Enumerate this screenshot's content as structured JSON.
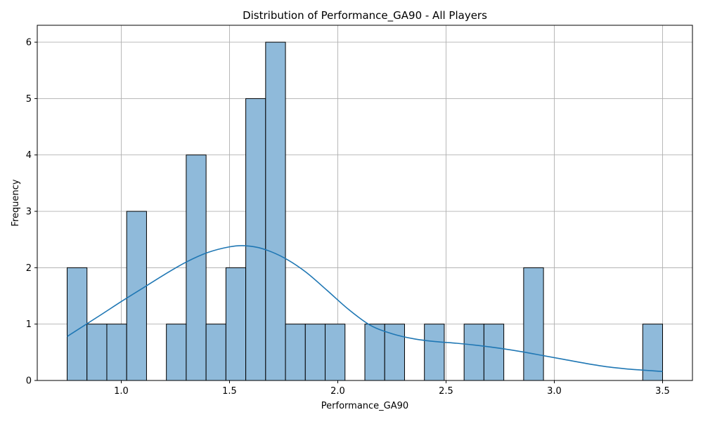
{
  "chart_data": {
    "type": "bar",
    "title": "Distribution of Performance_GA90 - All Players",
    "xlabel": "Performance_GA90",
    "ylabel": "Frequency",
    "xlim": [
      0.612,
      3.638
    ],
    "ylim": [
      0,
      6.3
    ],
    "grid": true,
    "bins": {
      "start": 0.75,
      "end": 3.5,
      "count": 30
    },
    "counts": [
      2,
      1,
      1,
      3,
      0,
      1,
      4,
      1,
      2,
      5,
      6,
      1,
      1,
      1,
      0,
      1,
      1,
      0,
      1,
      0,
      1,
      1,
      0,
      2,
      0,
      0,
      0,
      0,
      0,
      1
    ],
    "xticks": [
      "1.0",
      "1.5",
      "2.0",
      "2.5",
      "3.0",
      "3.5"
    ],
    "yticks": [
      "0",
      "1",
      "2",
      "3",
      "4",
      "5",
      "6"
    ],
    "kde": {
      "x": [
        0.75,
        0.9,
        1.0,
        1.1,
        1.2,
        1.3,
        1.4,
        1.5,
        1.57,
        1.65,
        1.75,
        1.85,
        1.95,
        2.05,
        2.15,
        2.25,
        2.35,
        2.45,
        2.55,
        2.65,
        2.75,
        2.85,
        2.95,
        3.05,
        3.15,
        3.25,
        3.35,
        3.5
      ],
      "y": [
        0.78,
        1.15,
        1.4,
        1.64,
        1.88,
        2.1,
        2.27,
        2.37,
        2.39,
        2.34,
        2.18,
        1.93,
        1.6,
        1.26,
        0.98,
        0.83,
        0.74,
        0.69,
        0.66,
        0.62,
        0.57,
        0.51,
        0.44,
        0.37,
        0.3,
        0.24,
        0.2,
        0.16
      ]
    },
    "colors": {
      "bar_fill": "#8fbada",
      "bar_edge": "#000000",
      "kde_line": "#1f77b4",
      "grid": "#b0b0b0"
    }
  }
}
